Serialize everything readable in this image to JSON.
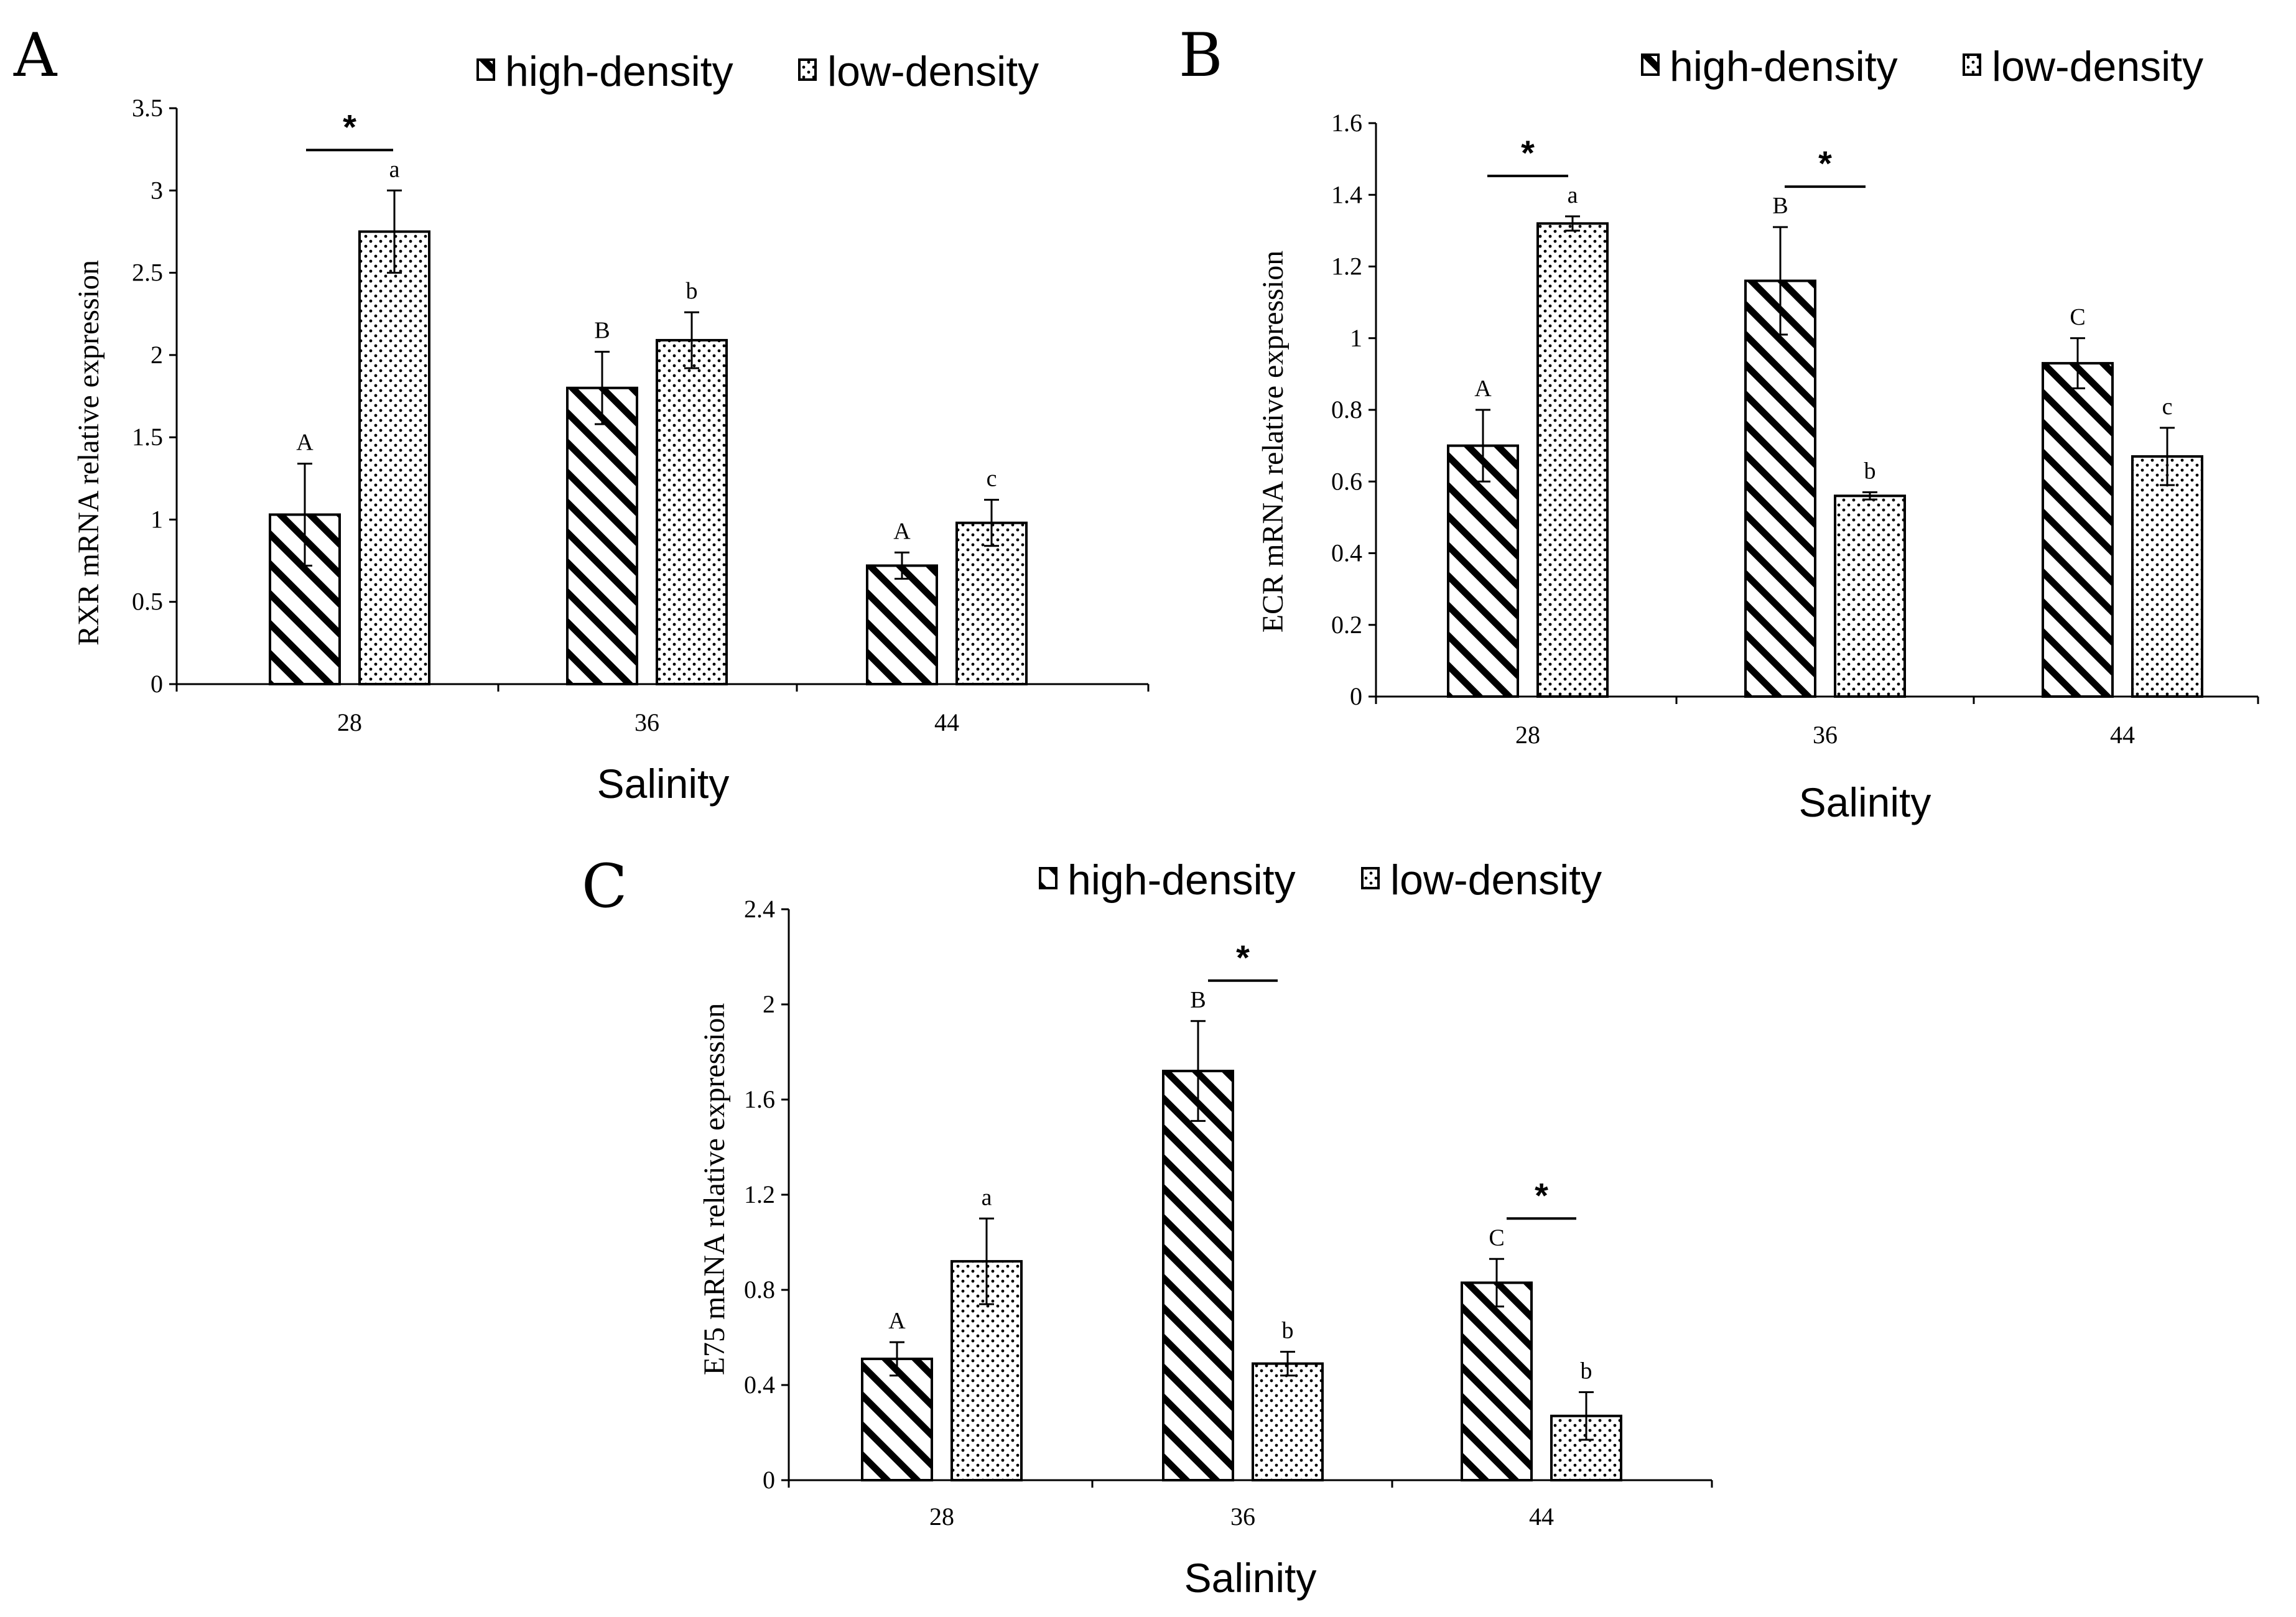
{
  "figure": {
    "legend": {
      "high": "high-density",
      "low": "low-density"
    },
    "colors": {
      "ink": "#000000",
      "background": "#ffffff"
    }
  },
  "chart_data": [
    {
      "id": "A",
      "type": "bar",
      "panel_label": "A",
      "categories": [
        "28",
        "36",
        "44"
      ],
      "xlabel": "Salinity",
      "ylabel": "RXR mRNA relative expression",
      "ylim": [
        0,
        3.5
      ],
      "yticks": [
        "0",
        "0.5",
        "1",
        "1.5",
        "2",
        "2.5",
        "3",
        "3.5"
      ],
      "series": [
        {
          "name": "high-density",
          "pattern": "diagonal-stripes",
          "values": [
            1.03,
            1.8,
            0.72
          ],
          "errors": [
            0.31,
            0.22,
            0.08
          ],
          "labels": [
            "A",
            "B",
            "A"
          ]
        },
        {
          "name": "low-density",
          "pattern": "dots",
          "values": [
            2.75,
            2.09,
            0.98
          ],
          "errors": [
            0.25,
            0.17,
            0.14
          ],
          "labels": [
            "a",
            "b",
            "c"
          ]
        }
      ],
      "significance": [
        {
          "category": 0,
          "label": "*",
          "bracket": "above-bars"
        }
      ]
    },
    {
      "id": "B",
      "type": "bar",
      "panel_label": "B",
      "categories": [
        "28",
        "36",
        "44"
      ],
      "xlabel": "Salinity",
      "ylabel": "ECR mRNA relative expression",
      "ylim": [
        0,
        1.6
      ],
      "yticks": [
        "0",
        "0.2",
        "0.4",
        "0.6",
        "0.8",
        "1",
        "1.2",
        "1.4",
        "1.6"
      ],
      "series": [
        {
          "name": "high-density",
          "pattern": "diagonal-stripes",
          "values": [
            0.7,
            1.16,
            0.93
          ],
          "errors": [
            0.1,
            0.15,
            0.07
          ],
          "labels": [
            "A",
            "B",
            "C"
          ]
        },
        {
          "name": "low-density",
          "pattern": "dots",
          "values": [
            1.32,
            0.56,
            0.67
          ],
          "errors": [
            0.02,
            0.01,
            0.08
          ],
          "labels": [
            "a",
            "b",
            "c"
          ]
        }
      ],
      "significance": [
        {
          "category": 0,
          "label": "*",
          "bracket": "above-bars"
        },
        {
          "category": 1,
          "label": "*",
          "bracket": "above-bars"
        }
      ]
    },
    {
      "id": "C",
      "type": "bar",
      "panel_label": "C",
      "categories": [
        "28",
        "36",
        "44"
      ],
      "xlabel": "Salinity",
      "ylabel": "E75 mRNA relative expression",
      "ylim": [
        0,
        2.4
      ],
      "yticks": [
        "0",
        "0.4",
        "0.8",
        "1.2",
        "1.6",
        "2",
        "2.4"
      ],
      "series": [
        {
          "name": "high-density",
          "pattern": "diagonal-stripes",
          "values": [
            0.51,
            1.72,
            0.83
          ],
          "errors": [
            0.07,
            0.21,
            0.1
          ],
          "labels": [
            "A",
            "B",
            "C"
          ]
        },
        {
          "name": "low-density",
          "pattern": "dots",
          "values": [
            0.92,
            0.49,
            0.27
          ],
          "errors": [
            0.18,
            0.05,
            0.1
          ],
          "labels": [
            "a",
            "b",
            "b"
          ]
        }
      ],
      "significance": [
        {
          "category": 1,
          "label": "*",
          "bracket": "above-bars"
        },
        {
          "category": 2,
          "label": "*",
          "bracket": "above-bars"
        }
      ]
    }
  ]
}
